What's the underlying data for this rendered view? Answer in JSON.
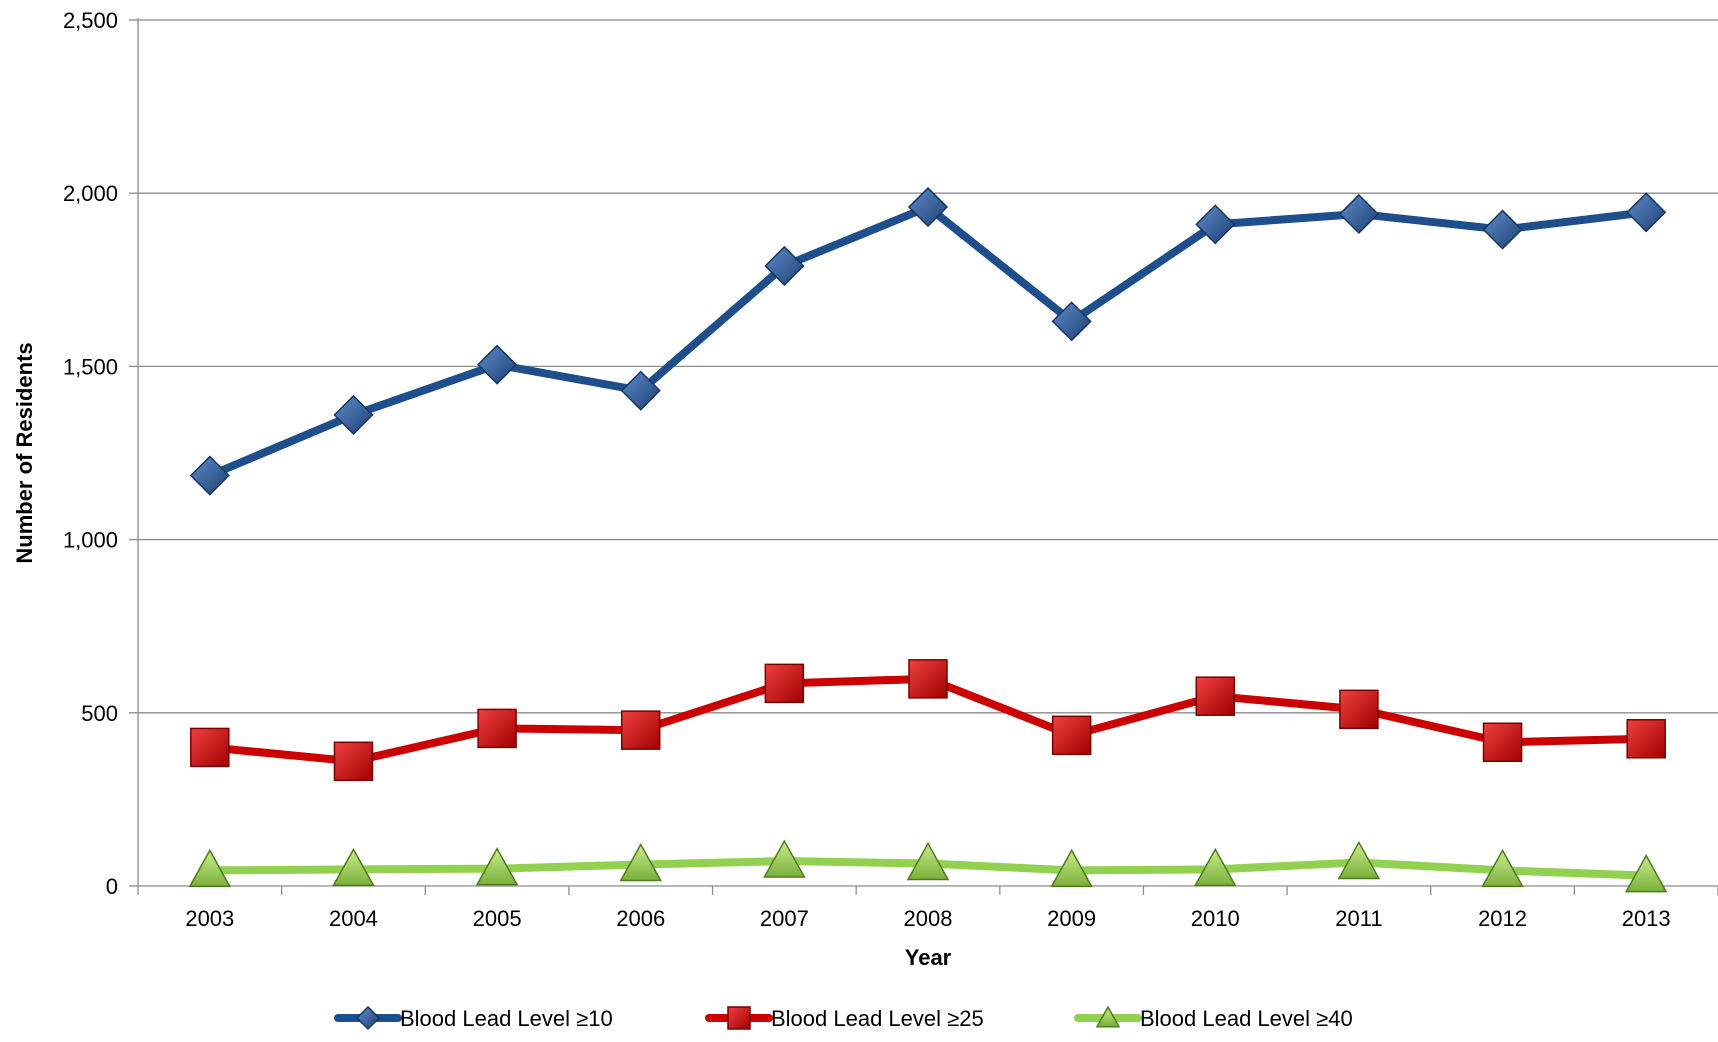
{
  "chart_data": {
    "type": "line",
    "title": "",
    "xlabel": "Year",
    "ylabel": "Number of Residents",
    "categories": [
      "2003",
      "2004",
      "2005",
      "2006",
      "2007",
      "2008",
      "2009",
      "2010",
      "2011",
      "2012",
      "2013"
    ],
    "ylim": [
      0,
      2500
    ],
    "yticks": [
      0,
      500,
      1000,
      1500,
      2000,
      2500
    ],
    "ytick_labels": [
      "0",
      "500",
      "1,000",
      "1,500",
      "2,000",
      "2,500"
    ],
    "grid": true,
    "legend_position": "bottom",
    "series": [
      {
        "name": "Blood Lead Level ≥10",
        "marker": "diamond",
        "color": "#1f4e8c",
        "values": [
          1185,
          1360,
          1505,
          1430,
          1790,
          1960,
          1630,
          1910,
          1940,
          1895,
          1945
        ]
      },
      {
        "name": "Blood Lead Level ≥25",
        "marker": "square",
        "color": "#cc0000",
        "values": [
          400,
          360,
          455,
          450,
          585,
          598,
          435,
          548,
          510,
          415,
          425
        ]
      },
      {
        "name": "Blood Lead Level ≥40",
        "marker": "triangle",
        "color": "#92d050",
        "values": [
          45,
          48,
          50,
          62,
          72,
          65,
          45,
          48,
          68,
          45,
          30
        ]
      }
    ]
  }
}
